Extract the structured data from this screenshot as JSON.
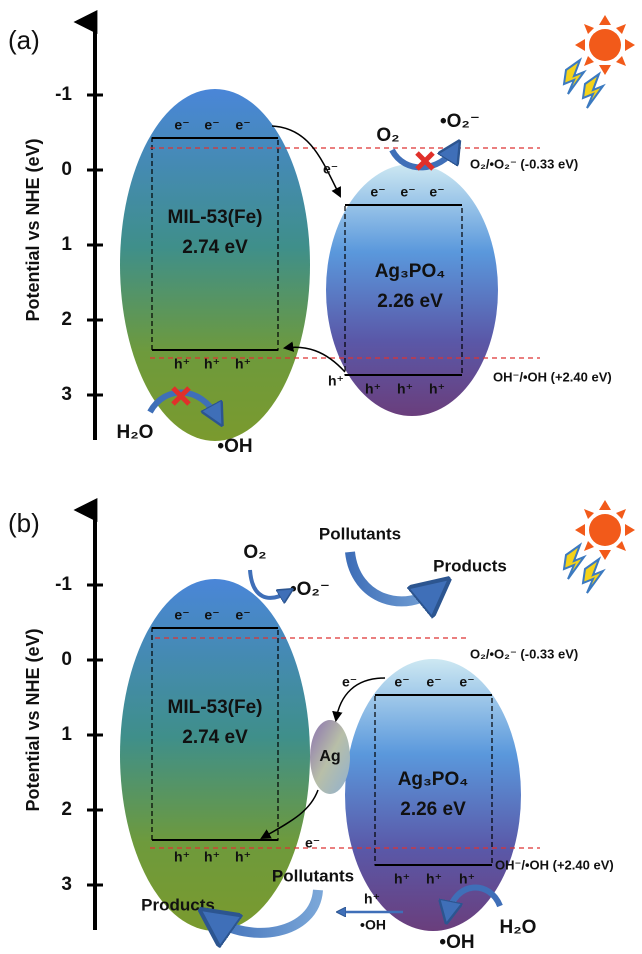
{
  "panels": [
    {
      "label": "(a)",
      "axis_title": "Potential vs NHE (eV)",
      "ticks": [
        "-1",
        "0",
        "1",
        "2",
        "3"
      ],
      "mil": {
        "name": "MIL-53(Fe)",
        "gap": "2.74 eV",
        "cb": [
          "e⁻",
          "e⁻",
          "e⁻"
        ],
        "vb": [
          "h⁺",
          "h⁺",
          "h⁺"
        ]
      },
      "ag3po4": {
        "name": "Ag₃PO₄",
        "gap": "2.26 eV",
        "cb": [
          "e⁻",
          "e⁻",
          "e⁻"
        ],
        "vb": [
          "h⁺",
          "h⁺",
          "h⁺"
        ]
      },
      "levels": {
        "o2": "O₂/•O₂⁻ (-0.33 eV)",
        "oh": "OH⁻/•OH (+2.40 eV)"
      },
      "transfer": {
        "electron": "e⁻",
        "hole": "h⁺"
      },
      "reactions": {
        "o2": "O₂",
        "superoxide": "•O₂⁻",
        "h2o": "H₂O",
        "oh": "•OH"
      }
    },
    {
      "label": "(b)",
      "axis_title": "Potential vs NHE (eV)",
      "ticks": [
        "-1",
        "0",
        "1",
        "2",
        "3"
      ],
      "mil": {
        "name": "MIL-53(Fe)",
        "gap": "2.74 eV",
        "cb": [
          "e⁻",
          "e⁻",
          "e⁻"
        ],
        "vb": [
          "h⁺",
          "h⁺",
          "h⁺"
        ]
      },
      "ag3po4": {
        "name": "Ag₃PO₄",
        "gap": "2.26 eV",
        "cb": [
          "e⁻",
          "e⁻",
          "e⁻"
        ],
        "vb": [
          "h⁺",
          "h⁺",
          "h⁺"
        ]
      },
      "ag": "Ag",
      "levels": {
        "o2": "O₂/•O₂⁻ (-0.33 eV)",
        "oh": "OH⁻/•OH (+2.40 eV)"
      },
      "transfer": {
        "electron_in": "e⁻",
        "electron_out": "e⁻",
        "hole": "h⁺",
        "hole_product": "•OH"
      },
      "reactions": {
        "o2": "O₂",
        "superoxide": "•O₂⁻",
        "pollutants_top": "Pollutants",
        "products_top": "Products",
        "pollutants_bottom": "Pollutants",
        "products_bottom": "Products",
        "h2o": "H₂O",
        "oh": "•OH"
      }
    }
  ]
}
